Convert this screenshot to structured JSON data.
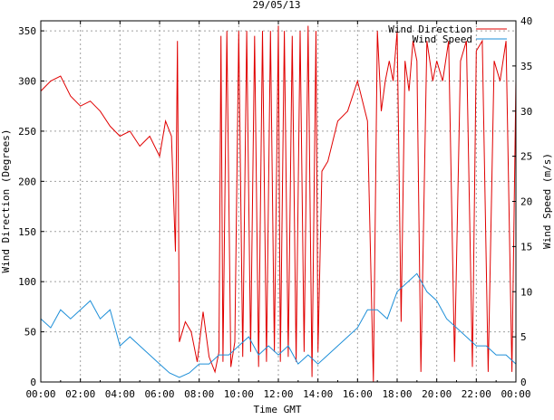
{
  "chart_data": {
    "type": "line",
    "title": "29/05/13",
    "xlabel": "Time GMT",
    "ylabel_left": "Wind Direction (Degrees)",
    "ylabel_right": "Wind Speed (m/s)",
    "x_ticks": [
      "00:00",
      "02:00",
      "04:00",
      "06:00",
      "08:00",
      "10:00",
      "12:00",
      "14:00",
      "16:00",
      "18:00",
      "20:00",
      "22:00",
      "00:00"
    ],
    "x_range_hours": [
      0,
      24
    ],
    "y_left_range": [
      0,
      360
    ],
    "y_left_ticks": [
      0,
      50,
      100,
      150,
      200,
      250,
      300,
      350
    ],
    "y_right_range": [
      0,
      40
    ],
    "y_right_ticks": [
      0,
      5,
      10,
      15,
      20,
      25,
      30,
      35,
      40
    ],
    "grid": true,
    "legend_position": "top-right",
    "series": [
      {
        "name": "Wind Direction",
        "axis": "left",
        "color": "#e00000",
        "x": [
          0,
          0.5,
          1,
          1.5,
          2,
          2.5,
          3,
          3.5,
          4,
          4.5,
          5,
          5.5,
          6,
          6.3,
          6.6,
          6.8,
          6.9,
          7,
          7.3,
          7.6,
          7.9,
          8.2,
          8.5,
          8.8,
          9.0,
          9.1,
          9.2,
          9.4,
          9.6,
          9.8,
          10.0,
          10.2,
          10.4,
          10.6,
          10.8,
          11.0,
          11.2,
          11.4,
          11.6,
          11.8,
          12.0,
          12.1,
          12.3,
          12.5,
          12.7,
          12.9,
          13.1,
          13.3,
          13.5,
          13.7,
          13.9,
          14.0,
          14.2,
          14.5,
          15,
          15.5,
          16,
          16.5,
          16.8,
          17,
          17.2,
          17.4,
          17.6,
          17.8,
          18,
          18.2,
          18.4,
          18.6,
          18.8,
          19,
          19.2,
          19.5,
          19.8,
          20,
          20.3,
          20.6,
          20.9,
          21.2,
          21.5,
          21.8,
          22.0,
          22.3,
          22.6,
          22.9,
          23.2,
          23.5,
          23.8,
          24
        ],
        "y": [
          290,
          300,
          305,
          285,
          275,
          280,
          270,
          255,
          245,
          250,
          235,
          245,
          225,
          260,
          245,
          130,
          340,
          40,
          60,
          50,
          20,
          70,
          25,
          10,
          30,
          345,
          20,
          350,
          15,
          40,
          350,
          25,
          350,
          30,
          345,
          15,
          350,
          20,
          350,
          30,
          355,
          20,
          350,
          25,
          345,
          20,
          350,
          30,
          355,
          5,
          350,
          30,
          210,
          220,
          260,
          270,
          300,
          260,
          0,
          350,
          270,
          300,
          320,
          300,
          350,
          60,
          320,
          290,
          340,
          320,
          10,
          340,
          300,
          320,
          300,
          340,
          20,
          320,
          340,
          15,
          330,
          340,
          10,
          320,
          300,
          340,
          10,
          300
        ]
      },
      {
        "name": "Wind Speed",
        "axis": "right",
        "color": "#1e8fd8",
        "x": [
          0,
          0.5,
          1,
          1.5,
          2,
          2.5,
          3,
          3.5,
          4,
          4.5,
          5,
          5.5,
          6,
          6.5,
          7,
          7.5,
          8,
          8.5,
          9,
          9.5,
          10,
          10.5,
          11,
          11.5,
          12,
          12.5,
          13,
          13.5,
          14,
          14.5,
          15,
          15.5,
          16,
          16.5,
          17,
          17.5,
          18,
          18.5,
          19,
          19.5,
          20,
          20.5,
          21,
          21.5,
          22,
          22.5,
          23,
          23.5,
          24
        ],
        "y": [
          7,
          6,
          8,
          7,
          8,
          9,
          7,
          8,
          4,
          5,
          4,
          3,
          2,
          1,
          0.5,
          1,
          2,
          2,
          3,
          3,
          4,
          5,
          3,
          4,
          3,
          4,
          2,
          3,
          2,
          3,
          4,
          5,
          6,
          8,
          8,
          7,
          10,
          11,
          12,
          10,
          9,
          7,
          6,
          5,
          4,
          4,
          3,
          3,
          2
        ]
      }
    ]
  }
}
